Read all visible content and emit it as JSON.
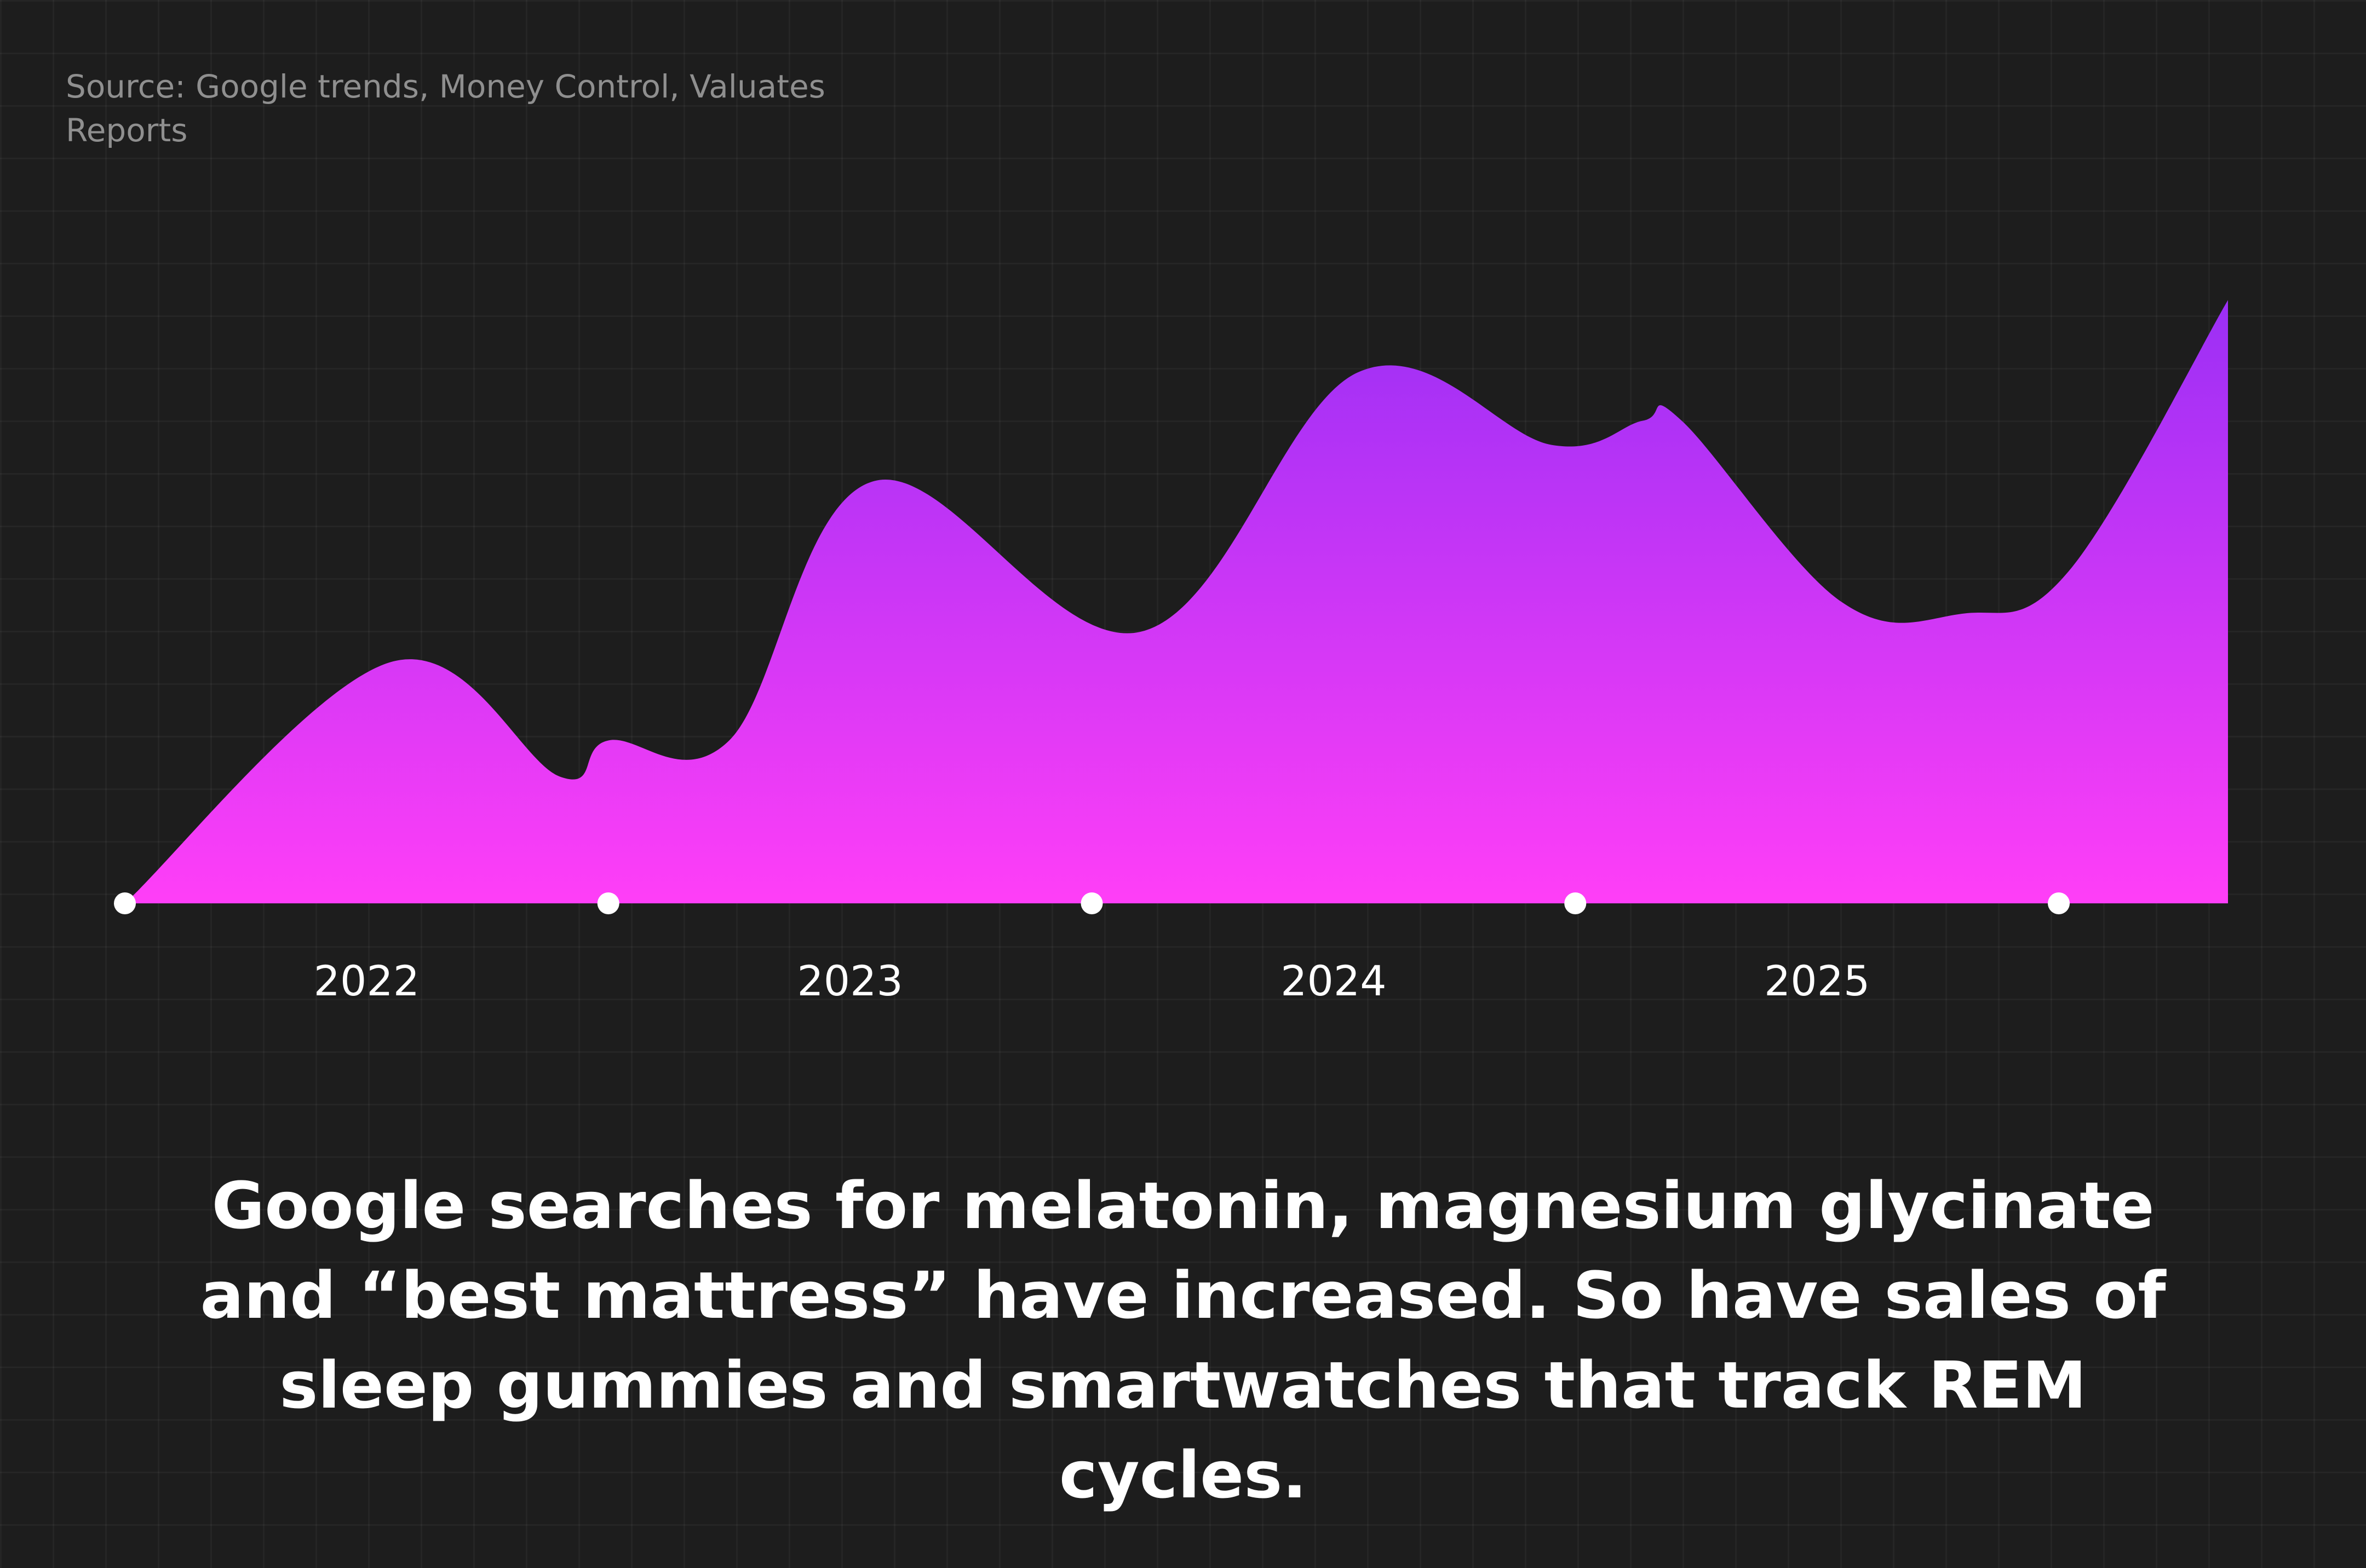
{
  "source": "Source: Google trends, Money Control, Valuates Reports",
  "caption": "Google searches for melatonin, magnesium glycinate and “best mattress” have increased. So have sales of sleep gummies and smartwatches that track REM cycles.",
  "colors": {
    "background": "#1d1d1d",
    "gradient_top": "#9b2ff5",
    "gradient_bottom": "#ff3ef7",
    "marker": "#ffffff",
    "text": "#ffffff"
  },
  "chart_data": {
    "type": "area",
    "title": "",
    "xlabel": "",
    "ylabel": "",
    "tick_labels": [
      "2022",
      "2023",
      "2024",
      "2025"
    ],
    "xlim": [
      2021.5,
      2025.85
    ],
    "ylim": [
      0,
      100
    ],
    "x": [
      2021.5,
      2022.05,
      2022.4,
      2022.5,
      2022.75,
      2023.05,
      2023.6,
      2024.05,
      2024.45,
      2024.64,
      2024.72,
      2025.05,
      2025.3,
      2025.52,
      2025.85
    ],
    "values": [
      0,
      40,
      21,
      27,
      27,
      70,
      45,
      88,
      76,
      80,
      80,
      50,
      48,
      55,
      100
    ],
    "grid": false,
    "legend": "none"
  }
}
